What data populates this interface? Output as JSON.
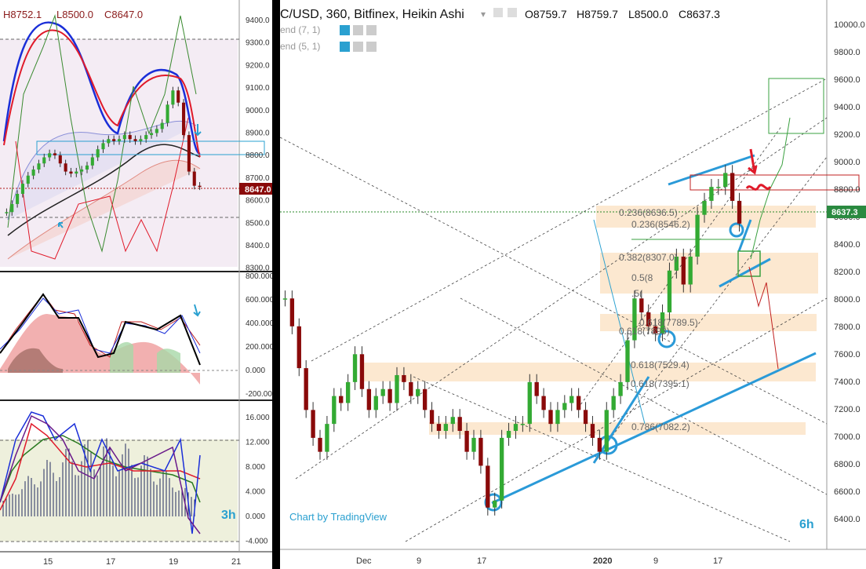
{
  "left_panel": {
    "ohlc": {
      "h": "H8752.1",
      "l": "L8500.0",
      "c": "C8647.0"
    },
    "last_price_label": "8647.0",
    "timeframe_label": "3h",
    "price_ticks": [
      "9400.0",
      "9300.0",
      "9200.0",
      "9100.0",
      "9000.0",
      "8900.0",
      "8800.0",
      "8700.0",
      "8600.0",
      "8500.0",
      "8400.0",
      "8300.0"
    ],
    "osc1_ticks": [
      "800.000",
      "600.000",
      "400.000",
      "200.000",
      "0.000",
      "-200.000"
    ],
    "osc2_ticks": [
      "16.000",
      "12.000",
      "8.000",
      "4.000",
      "0.000",
      "-4.000"
    ],
    "date_ticks": [
      "15",
      "17",
      "19",
      "21"
    ]
  },
  "right_panel": {
    "title": "C/USD, 360, Bitfinex, Heikin Ashi",
    "ohlc": {
      "o": "O8759.7",
      "h": "H8759.7",
      "l": "L8500.0",
      "c": "C8637.3"
    },
    "indicators": [
      "end (7, 1)",
      "end (5, 1)"
    ],
    "last_price_label": "8637.3",
    "timeframe_label": "6h",
    "watermark": "Chart by TradingView",
    "price_ticks": [
      "10000.0",
      "9800.0",
      "9600.0",
      "9400.0",
      "9200.0",
      "9000.0",
      "8800.0",
      "8600.0",
      "8400.0",
      "8200.0",
      "8000.0",
      "7800.0",
      "7600.0",
      "7400.0",
      "7200.0",
      "7000.0",
      "6800.0",
      "6600.0",
      "6400.0"
    ],
    "date_ticks": [
      "Dec",
      "9",
      "17",
      "2020",
      "9",
      "17"
    ],
    "fib_labels": [
      "0.236(8636.5)",
      "0.236(8546.2)",
      "0.382(8307.0)",
      "0.5(8",
      ".5(",
      "0.618(7789.5)",
      "0.618(7893)",
      "0.618(7529.4)",
      "0.618(7395.1)",
      "0.786(7082.2)"
    ]
  },
  "chart_data": [
    {
      "type": "candlestick",
      "title": "",
      "timeframe": "3h",
      "ylim": [
        8250,
        9450
      ],
      "last_price": 8647.0,
      "ohlc": {
        "high": 8752.1,
        "low": 8500.0,
        "close": 8647.0
      },
      "x_ticks": [
        "15",
        "17",
        "19",
        "21"
      ],
      "close_series": [
        8520,
        8560,
        8610,
        8660,
        8700,
        8730,
        8760,
        8790,
        8810,
        8800,
        8760,
        8720,
        8710,
        8720,
        8730,
        8750,
        8790,
        8830,
        8860,
        8880,
        8870,
        8880,
        8900,
        8880,
        8870,
        8880,
        8900,
        8910,
        8930,
        8960,
        9050,
        9120,
        9060,
        8900,
        8720,
        8650,
        8647
      ]
    },
    {
      "type": "line",
      "title": "",
      "ylim": [
        -250,
        850
      ],
      "series_count": 5
    },
    {
      "type": "bar",
      "title": "",
      "ylim": [
        -4.5,
        17
      ],
      "series_count": 4
    },
    {
      "type": "candlestick",
      "title": "C/USD, 360, Bitfinex, Heikin Ashi",
      "timeframe": "6h",
      "ylim": [
        6300,
        10100
      ],
      "last_price": 8637.3,
      "ohlc": {
        "open": 8759.7,
        "high": 8759.7,
        "low": 8500.0,
        "close": 8637.3
      },
      "x_ticks": [
        "Dec",
        "9",
        "17",
        "2020",
        "9",
        "17"
      ],
      "close_series": [
        8100,
        7900,
        7600,
        7300,
        7100,
        7000,
        7200,
        7400,
        7350,
        7500,
        7700,
        7450,
        7300,
        7400,
        7450,
        7350,
        7550,
        7500,
        7400,
        7450,
        7300,
        7200,
        7150,
        7200,
        7250,
        7150,
        7000,
        7100,
        6900,
        6600,
        6650,
        7100,
        7150,
        7200,
        7200,
        7500,
        7400,
        7300,
        7200,
        7300,
        7350,
        7400,
        7300,
        7200,
        7100,
        7000,
        7300,
        7400,
        7500,
        7800,
        8100,
        8000,
        7900,
        7850,
        8000,
        8300,
        8400,
        8200,
        8400,
        8700,
        8800,
        8900,
        8900,
        9000,
        8800,
        8637
      ]
    }
  ]
}
